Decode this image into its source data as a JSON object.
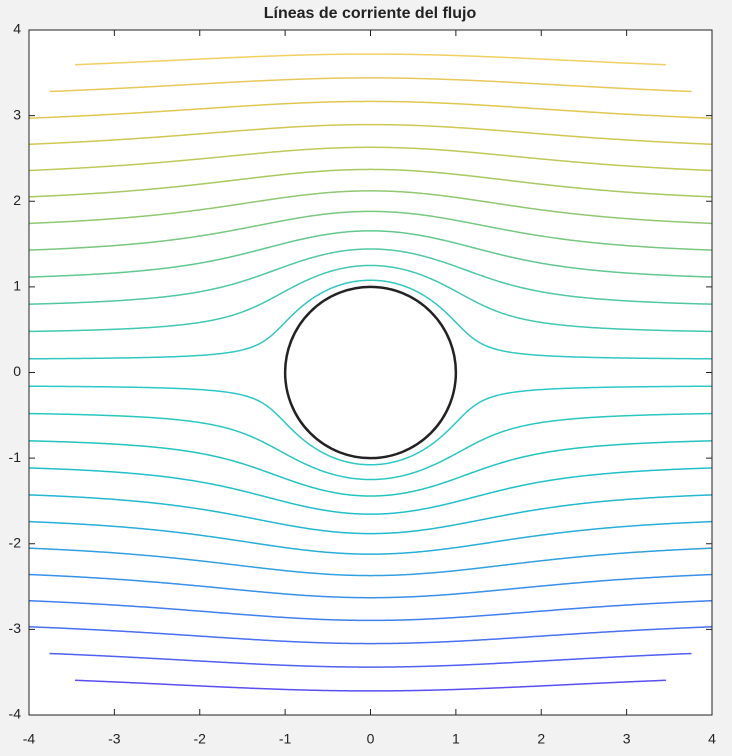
{
  "chart_data": {
    "type": "contour",
    "title": "Líneas de corriente del flujo",
    "xlim": [
      -4,
      4
    ],
    "ylim": [
      -4,
      4
    ],
    "xticks": [
      -4,
      -3,
      -2,
      -1,
      0,
      1,
      2,
      3,
      4
    ],
    "yticks": [
      -4,
      -3,
      -2,
      -1,
      0,
      1,
      2,
      3,
      4
    ],
    "domain_radius": 5,
    "cylinder_radius": 1,
    "cylinder_color": "#222222",
    "levels": [
      -3.45,
      -3.15,
      -2.85,
      -2.55,
      -2.25,
      -1.95,
      -1.65,
      -1.35,
      -1.05,
      -0.75,
      -0.45,
      -0.15,
      0.15,
      0.45,
      0.75,
      1.05,
      1.35,
      1.65,
      1.95,
      2.25,
      2.55,
      2.85,
      3.15,
      3.45
    ],
    "colors": [
      "#5a4ef0",
      "#5060f0",
      "#4870f0",
      "#3f80ee",
      "#3890e8",
      "#30a0e0",
      "#28aed8",
      "#22b8d0",
      "#20c0c8",
      "#22c4c0",
      "#28c8c0",
      "#2cc8c8",
      "#30c8c0",
      "#40c8b0",
      "#50c8a0",
      "#60c890",
      "#78c880",
      "#90c870",
      "#a8c860",
      "#c0c858",
      "#d0c850",
      "#e0c850",
      "#e8c858",
      "#f0d060"
    ]
  }
}
